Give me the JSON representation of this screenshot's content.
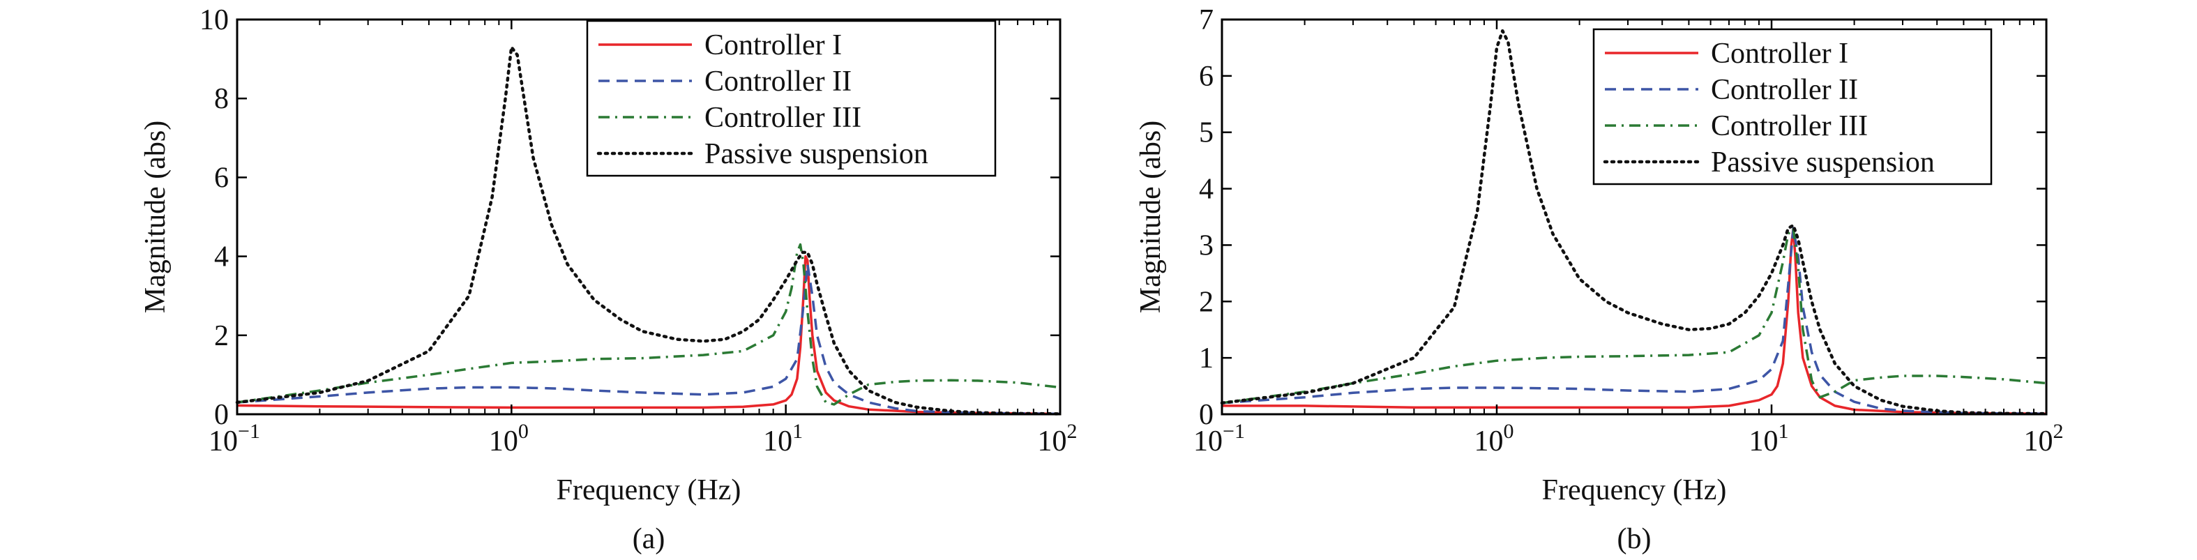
{
  "chart_data": [
    {
      "type": "line",
      "panel_label": "(a)",
      "xlabel": "Frequency (Hz)",
      "ylabel": "Magnitude (abs)",
      "xscale": "log",
      "xlim": [
        0.1,
        100
      ],
      "ylim": [
        0,
        10
      ],
      "x_ticks": [
        {
          "v": 0.1,
          "base": "10",
          "exp": "−1"
        },
        {
          "v": 1,
          "base": "10",
          "exp": "0"
        },
        {
          "v": 10,
          "base": "10",
          "exp": "1"
        },
        {
          "v": 100,
          "base": "10",
          "exp": "2"
        }
      ],
      "y_ticks": [
        0,
        2,
        4,
        6,
        8,
        10
      ],
      "legend_position": "top-right",
      "series": [
        {
          "name": "Controller I",
          "color": "#e8262a",
          "style": "solid",
          "x": [
            0.1,
            0.2,
            0.5,
            1,
            2,
            5,
            7,
            9,
            10,
            10.5,
            11,
            11.3,
            11.6,
            11.8,
            12,
            12.2,
            12.5,
            13,
            14,
            15,
            17,
            20,
            30,
            50,
            100
          ],
          "y": [
            0.22,
            0.2,
            0.18,
            0.17,
            0.17,
            0.17,
            0.19,
            0.25,
            0.35,
            0.5,
            0.9,
            1.7,
            3.0,
            4.0,
            3.9,
            3.0,
            2.0,
            1.1,
            0.55,
            0.35,
            0.2,
            0.12,
            0.06,
            0.03,
            0.01
          ]
        },
        {
          "name": "Controller II",
          "color": "#3d55a6",
          "style": "dashed",
          "x": [
            0.1,
            0.2,
            0.3,
            0.5,
            0.7,
            1,
            1.5,
            2,
            3,
            5,
            7,
            9,
            10,
            11,
            11.5,
            12,
            12.5,
            13,
            14,
            15,
            17,
            20,
            25,
            30,
            50,
            100
          ],
          "y": [
            0.3,
            0.45,
            0.55,
            0.65,
            0.68,
            0.68,
            0.65,
            0.6,
            0.55,
            0.5,
            0.55,
            0.7,
            0.9,
            1.4,
            2.5,
            3.8,
            3.0,
            2.0,
            1.2,
            0.8,
            0.5,
            0.3,
            0.15,
            0.08,
            0.03,
            0.01
          ]
        },
        {
          "name": "Controller III",
          "color": "#2b7a34",
          "style": "dashdot",
          "x": [
            0.1,
            0.2,
            0.3,
            0.5,
            0.7,
            1,
            1.5,
            2,
            3,
            5,
            7,
            9,
            10,
            10.5,
            11,
            11.3,
            11.6,
            12,
            12.5,
            13,
            14,
            15,
            17,
            20,
            25,
            30,
            40,
            50,
            70,
            100
          ],
          "y": [
            0.3,
            0.6,
            0.8,
            1.0,
            1.15,
            1.3,
            1.35,
            1.4,
            1.42,
            1.5,
            1.6,
            2.0,
            2.6,
            3.2,
            4.1,
            4.3,
            3.8,
            2.6,
            1.4,
            0.7,
            0.3,
            0.25,
            0.5,
            0.75,
            0.82,
            0.85,
            0.86,
            0.85,
            0.8,
            0.68
          ]
        },
        {
          "name": "Passive suspension",
          "color": "#111111",
          "style": "dotted",
          "x": [
            0.1,
            0.2,
            0.3,
            0.5,
            0.7,
            0.85,
            0.95,
            1.0,
            1.05,
            1.1,
            1.2,
            1.4,
            1.6,
            2,
            2.5,
            3,
            4,
            5,
            6,
            7,
            8,
            9,
            10,
            11,
            11.5,
            12,
            12.5,
            13,
            14,
            15,
            17,
            20,
            25,
            30,
            40,
            50,
            70,
            100
          ],
          "y": [
            0.3,
            0.55,
            0.85,
            1.6,
            3.0,
            5.5,
            8.0,
            9.3,
            9.1,
            8.2,
            6.5,
            4.8,
            3.8,
            2.9,
            2.4,
            2.1,
            1.9,
            1.85,
            1.9,
            2.1,
            2.4,
            2.9,
            3.4,
            3.9,
            4.1,
            4.1,
            3.8,
            3.3,
            2.5,
            1.8,
            1.1,
            0.6,
            0.3,
            0.18,
            0.08,
            0.04,
            0.02,
            0.01
          ]
        }
      ]
    },
    {
      "type": "line",
      "panel_label": "(b)",
      "xlabel": "Frequency (Hz)",
      "ylabel": "Magnitude (abs)",
      "xscale": "log",
      "xlim": [
        0.1,
        100
      ],
      "ylim": [
        0,
        7
      ],
      "x_ticks": [
        {
          "v": 0.1,
          "base": "10",
          "exp": "−1"
        },
        {
          "v": 1,
          "base": "10",
          "exp": "0"
        },
        {
          "v": 10,
          "base": "10",
          "exp": "1"
        },
        {
          "v": 100,
          "base": "10",
          "exp": "2"
        }
      ],
      "y_ticks": [
        0,
        1,
        2,
        3,
        4,
        5,
        6,
        7
      ],
      "legend_position": "top-right",
      "series": [
        {
          "name": "Controller I",
          "color": "#e8262a",
          "style": "solid",
          "x": [
            0.1,
            0.2,
            0.5,
            1,
            2,
            5,
            7,
            9,
            10,
            10.5,
            11,
            11.5,
            11.8,
            12,
            12.2,
            12.5,
            13,
            14,
            15,
            17,
            20,
            30,
            50,
            100
          ],
          "y": [
            0.15,
            0.15,
            0.12,
            0.12,
            0.12,
            0.12,
            0.15,
            0.25,
            0.35,
            0.5,
            0.9,
            2.0,
            3.0,
            3.3,
            2.8,
            1.8,
            1.0,
            0.5,
            0.3,
            0.15,
            0.08,
            0.04,
            0.02,
            0.01
          ]
        },
        {
          "name": "Controller II",
          "color": "#3d55a6",
          "style": "dashed",
          "x": [
            0.1,
            0.2,
            0.3,
            0.5,
            0.7,
            1,
            1.5,
            2,
            3,
            5,
            7,
            9,
            10,
            11,
            11.5,
            12,
            12.5,
            13,
            14,
            15,
            17,
            20,
            25,
            30,
            50,
            100
          ],
          "y": [
            0.2,
            0.3,
            0.38,
            0.45,
            0.47,
            0.47,
            0.46,
            0.45,
            0.42,
            0.4,
            0.45,
            0.6,
            0.8,
            1.3,
            2.3,
            3.3,
            2.8,
            1.9,
            1.1,
            0.7,
            0.4,
            0.22,
            0.1,
            0.06,
            0.02,
            0.01
          ]
        },
        {
          "name": "Controller III",
          "color": "#2b7a34",
          "style": "dashdot",
          "x": [
            0.1,
            0.2,
            0.3,
            0.5,
            0.7,
            1,
            1.5,
            2,
            3,
            5,
            7,
            9,
            10,
            11,
            11.5,
            12,
            12.5,
            13,
            14,
            15,
            17,
            20,
            25,
            30,
            40,
            50,
            70,
            100
          ],
          "y": [
            0.2,
            0.4,
            0.55,
            0.72,
            0.85,
            0.95,
            1.0,
            1.02,
            1.03,
            1.05,
            1.1,
            1.4,
            1.8,
            2.7,
            3.2,
            3.3,
            2.6,
            1.5,
            0.6,
            0.3,
            0.4,
            0.6,
            0.65,
            0.68,
            0.68,
            0.66,
            0.62,
            0.55
          ]
        },
        {
          "name": "Passive suspension",
          "color": "#111111",
          "style": "dotted",
          "x": [
            0.1,
            0.2,
            0.3,
            0.5,
            0.7,
            0.85,
            0.95,
            1.0,
            1.05,
            1.1,
            1.2,
            1.4,
            1.6,
            2,
            2.5,
            3,
            4,
            5,
            6,
            7,
            8,
            9,
            10,
            11,
            11.5,
            12,
            12.5,
            13,
            14,
            15,
            17,
            20,
            25,
            30,
            40,
            50,
            70,
            100
          ],
          "y": [
            0.2,
            0.38,
            0.55,
            1.0,
            1.9,
            3.6,
            5.5,
            6.5,
            6.8,
            6.6,
            5.5,
            4.0,
            3.2,
            2.4,
            2.0,
            1.8,
            1.6,
            1.5,
            1.52,
            1.6,
            1.8,
            2.1,
            2.5,
            3.0,
            3.3,
            3.35,
            3.1,
            2.7,
            2.0,
            1.5,
            0.9,
            0.5,
            0.25,
            0.14,
            0.06,
            0.03,
            0.015,
            0.01
          ]
        }
      ]
    }
  ]
}
